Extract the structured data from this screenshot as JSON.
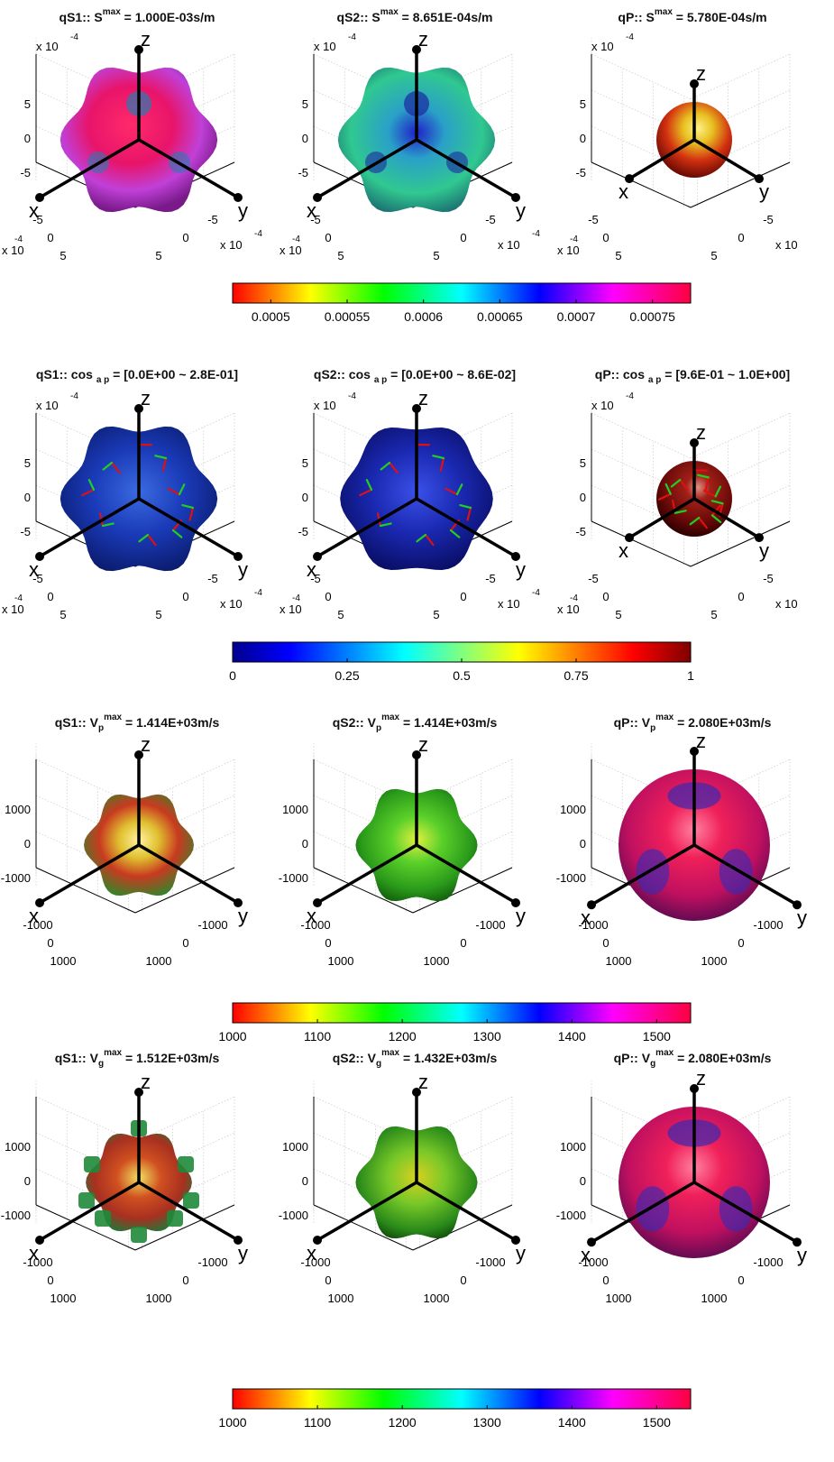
{
  "rows": [
    {
      "kind": "slowness",
      "panels": [
        {
          "title": "qS1:: S",
          "sup": "max",
          "sub": "",
          "value": " = 1.000E-03s/m",
          "z_ticks": [
            "5",
            "0",
            "-5"
          ],
          "x_ticks": [
            "-5",
            "0",
            "5"
          ],
          "y_ticks": [
            "-5",
            "0",
            "5"
          ],
          "exp_left": "x 10",
          "exp_left_pow": "-4",
          "exp_bottom_left": "x 10",
          "exp_bottom_left_pow": "-4",
          "exp_bottom_right": "x 10",
          "exp_bottom_right_pow": "-4",
          "labels": [
            "z",
            "x",
            "y"
          ]
        },
        {
          "title": "qS2:: S",
          "sup": "max",
          "sub": "",
          "value": " = 8.651E-04s/m",
          "z_ticks": [
            "5",
            "0",
            "-5"
          ],
          "x_ticks": [
            "-5",
            "0",
            "5"
          ],
          "y_ticks": [
            "-5",
            "0",
            "5"
          ],
          "exp_left": "x 10",
          "exp_left_pow": "-4",
          "exp_bottom_left": "x 10",
          "exp_bottom_left_pow": "-4",
          "exp_bottom_right": "x 10",
          "exp_bottom_right_pow": "-4",
          "labels": [
            "z",
            "x",
            "y"
          ]
        },
        {
          "title": "qP:: S",
          "sup": "max",
          "sub": "",
          "value": " = 5.780E-04s/m",
          "z_ticks": [
            "5",
            "0",
            "-5"
          ],
          "x_ticks": [
            "-5",
            "0",
            "5"
          ],
          "y_ticks": [
            "-5",
            "0",
            "5"
          ],
          "exp_left": "x 10",
          "exp_left_pow": "-4",
          "exp_bottom_left": "x 10",
          "exp_bottom_left_pow": "-4",
          "exp_bottom_right": "x 10",
          "exp_bottom_right_pow": "",
          "labels": [
            "z",
            "x",
            "y"
          ]
        }
      ],
      "colorbar": {
        "map": "hsv",
        "ticks": [
          "0.0005",
          "0.00055",
          "0.0006",
          "0.00065",
          "0.0007",
          "0.00075"
        ],
        "range": [
          0.000475,
          0.000775
        ]
      }
    },
    {
      "kind": "polarization",
      "panels": [
        {
          "title": "qS1:: cos ",
          "sup": "",
          "sub": "a p",
          "value": " = [0.0E+00 ~ 2.8E-01]",
          "z_ticks": [
            "5",
            "0",
            "-5"
          ],
          "x_ticks": [
            "-5",
            "0",
            "5"
          ],
          "y_ticks": [
            "-5",
            "0",
            "5"
          ],
          "exp_left": "x 10",
          "exp_left_pow": "-4",
          "exp_bottom_left": "x 10",
          "exp_bottom_left_pow": "-4",
          "exp_bottom_right": "x 10",
          "exp_bottom_right_pow": "-4",
          "labels": [
            "z",
            "x",
            "y"
          ]
        },
        {
          "title": "qS2:: cos ",
          "sup": "",
          "sub": "a p",
          "value": " = [0.0E+00 ~ 8.6E-02]",
          "z_ticks": [
            "5",
            "0",
            "-5"
          ],
          "x_ticks": [
            "-5",
            "0",
            "5"
          ],
          "y_ticks": [
            "-5",
            "0",
            "5"
          ],
          "exp_left": "x 10",
          "exp_left_pow": "-4",
          "exp_bottom_left": "x 10",
          "exp_bottom_left_pow": "-4",
          "exp_bottom_right": "x 10",
          "exp_bottom_right_pow": "-4",
          "labels": [
            "z",
            "x",
            "y"
          ]
        },
        {
          "title": "qP:: cos ",
          "sup": "",
          "sub": "a p",
          "value": " = [9.6E-01 ~ 1.0E+00]",
          "z_ticks": [
            "5",
            "0",
            "-5"
          ],
          "x_ticks": [
            "-5",
            "0",
            "5"
          ],
          "y_ticks": [
            "-5",
            "0",
            "5"
          ],
          "exp_left": "x 10",
          "exp_left_pow": "-4",
          "exp_bottom_left": "x 10",
          "exp_bottom_left_pow": "-4",
          "exp_bottom_right": "x 10",
          "exp_bottom_right_pow": "",
          "labels": [
            "z",
            "x",
            "y"
          ]
        }
      ],
      "colorbar": {
        "map": "jet",
        "ticks": [
          "0",
          "0.25",
          "0.5",
          "0.75",
          "1"
        ],
        "range": [
          0,
          1
        ]
      }
    },
    {
      "kind": "phase_velocity",
      "panels": [
        {
          "title": "qS1:: V",
          "sup": "max",
          "sub": "p",
          "value": " = 1.414E+03m/s",
          "z_ticks": [
            "1000",
            "0",
            "-1000"
          ],
          "x_ticks": [
            "-1000",
            "0",
            "1000"
          ],
          "y_ticks": [
            "-1000",
            "0",
            "1000"
          ],
          "labels": [
            "z",
            "x",
            "y"
          ]
        },
        {
          "title": "qS2:: V",
          "sup": "max",
          "sub": "p",
          "value": " = 1.414E+03m/s",
          "z_ticks": [
            "1000",
            "0",
            "-1000"
          ],
          "x_ticks": [
            "-1000",
            "0",
            "1000"
          ],
          "y_ticks": [
            "-1000",
            "0",
            "1000"
          ],
          "labels": [
            "z",
            "x",
            "y"
          ]
        },
        {
          "title": "qP:: V",
          "sup": "max",
          "sub": "p",
          "value": " = 2.080E+03m/s",
          "z_ticks": [
            "1000",
            "0",
            "-1000"
          ],
          "x_ticks": [
            "-1000",
            "0",
            "1000"
          ],
          "y_ticks": [
            "-1000",
            "0",
            "1000"
          ],
          "labels": [
            "z",
            "x",
            "y"
          ]
        }
      ],
      "colorbar": {
        "map": "hsv",
        "ticks": [
          "1000",
          "1100",
          "1200",
          "1300",
          "1400",
          "1500"
        ],
        "range": [
          1000,
          1540
        ]
      }
    },
    {
      "kind": "group_velocity",
      "panels": [
        {
          "title": "qS1:: V",
          "sup": "max",
          "sub": "g",
          "value": " = 1.512E+03m/s",
          "z_ticks": [
            "1000",
            "0",
            "-1000"
          ],
          "x_ticks": [
            "-1000",
            "0",
            "1000"
          ],
          "y_ticks": [
            "-1000",
            "0",
            "1000"
          ],
          "labels": [
            "z",
            "x",
            "y"
          ]
        },
        {
          "title": "qS2:: V",
          "sup": "max",
          "sub": "g",
          "value": " = 1.432E+03m/s",
          "z_ticks": [
            "1000",
            "0",
            "-1000"
          ],
          "x_ticks": [
            "-1000",
            "0",
            "1000"
          ],
          "y_ticks": [
            "-1000",
            "0",
            "1000"
          ],
          "labels": [
            "z",
            "x",
            "y"
          ]
        },
        {
          "title": "qP:: V",
          "sup": "max",
          "sub": "g",
          "value": " = 2.080E+03m/s",
          "z_ticks": [
            "1000",
            "0",
            "-1000"
          ],
          "x_ticks": [
            "-1000",
            "0",
            "1000"
          ],
          "y_ticks": [
            "-1000",
            "0",
            "1000"
          ],
          "labels": [
            "z",
            "x",
            "y"
          ]
        }
      ],
      "colorbar": {
        "map": "hsv",
        "ticks": [
          "1000",
          "1100",
          "1200",
          "1300",
          "1400",
          "1500"
        ],
        "range": [
          1000,
          1540
        ]
      }
    }
  ],
  "chart_data": [
    {
      "type": "other",
      "title": "qS1:: S max = 1.000E-03s/m",
      "surface_value_range_color": [
        0.000475,
        0.000775
      ],
      "axes": {
        "x": "x",
        "y": "y",
        "z": "z"
      },
      "tick_multiplier": "x 10^-4",
      "ticks": [
        -5,
        0,
        5
      ]
    },
    {
      "type": "other",
      "title": "qS2:: S max = 8.651E-04s/m",
      "surface_value_range_color": [
        0.000475,
        0.000775
      ],
      "axes": {
        "x": "x",
        "y": "y",
        "z": "z"
      },
      "tick_multiplier": "x 10^-4",
      "ticks": [
        -5,
        0,
        5
      ]
    },
    {
      "type": "other",
      "title": "qP:: S max = 5.780E-04s/m",
      "surface_value_range_color": [
        0.000475,
        0.000775
      ],
      "axes": {
        "x": "x",
        "y": "y",
        "z": "z"
      },
      "tick_multiplier": "x 10^-4",
      "ticks": [
        -5,
        0,
        5
      ]
    },
    {
      "type": "other",
      "title": "qS1:: cos a p = [0.0E+00 ~ 2.8E-01]",
      "range": [
        0.0,
        0.28
      ],
      "ticks": [
        -5,
        0,
        5
      ]
    },
    {
      "type": "other",
      "title": "qS2:: cos a p = [0.0E+00 ~ 8.6E-02]",
      "range": [
        0.0,
        0.086
      ],
      "ticks": [
        -5,
        0,
        5
      ]
    },
    {
      "type": "other",
      "title": "qP:: cos a p = [9.6E-01 ~ 1.0E+00]",
      "range": [
        0.96,
        1.0
      ],
      "ticks": [
        -5,
        0,
        5
      ]
    },
    {
      "type": "other",
      "title": "qS1:: Vp max = 1.414E+03m/s",
      "max": 1414,
      "ticks": [
        -1000,
        0,
        1000
      ]
    },
    {
      "type": "other",
      "title": "qS2:: Vp max = 1.414E+03m/s",
      "max": 1414,
      "ticks": [
        -1000,
        0,
        1000
      ]
    },
    {
      "type": "other",
      "title": "qP:: Vp max = 2.080E+03m/s",
      "max": 2080,
      "ticks": [
        -1000,
        0,
        1000
      ]
    },
    {
      "type": "other",
      "title": "qS1:: Vg max = 1.512E+03m/s",
      "max": 1512,
      "ticks": [
        -1000,
        0,
        1000
      ]
    },
    {
      "type": "other",
      "title": "qS2:: Vg max = 1.432E+03m/s",
      "max": 1432,
      "ticks": [
        -1000,
        0,
        1000
      ]
    },
    {
      "type": "other",
      "title": "qP:: Vg max = 2.080E+03m/s",
      "max": 2080,
      "ticks": [
        -1000,
        0,
        1000
      ]
    }
  ],
  "surfaces": [
    [
      "blob_magenta_red",
      "blob_cyan_blue",
      "sphere_red_yellow"
    ],
    [
      "blob_blue_arrows",
      "cube_blue_arrows",
      "sphere_darkred_arrows"
    ],
    [
      "blob_red_yellow_green",
      "blob_green",
      "sphere_magenta"
    ],
    [
      "spiky_red_green",
      "blob_green_yellow",
      "sphere_magenta"
    ]
  ]
}
